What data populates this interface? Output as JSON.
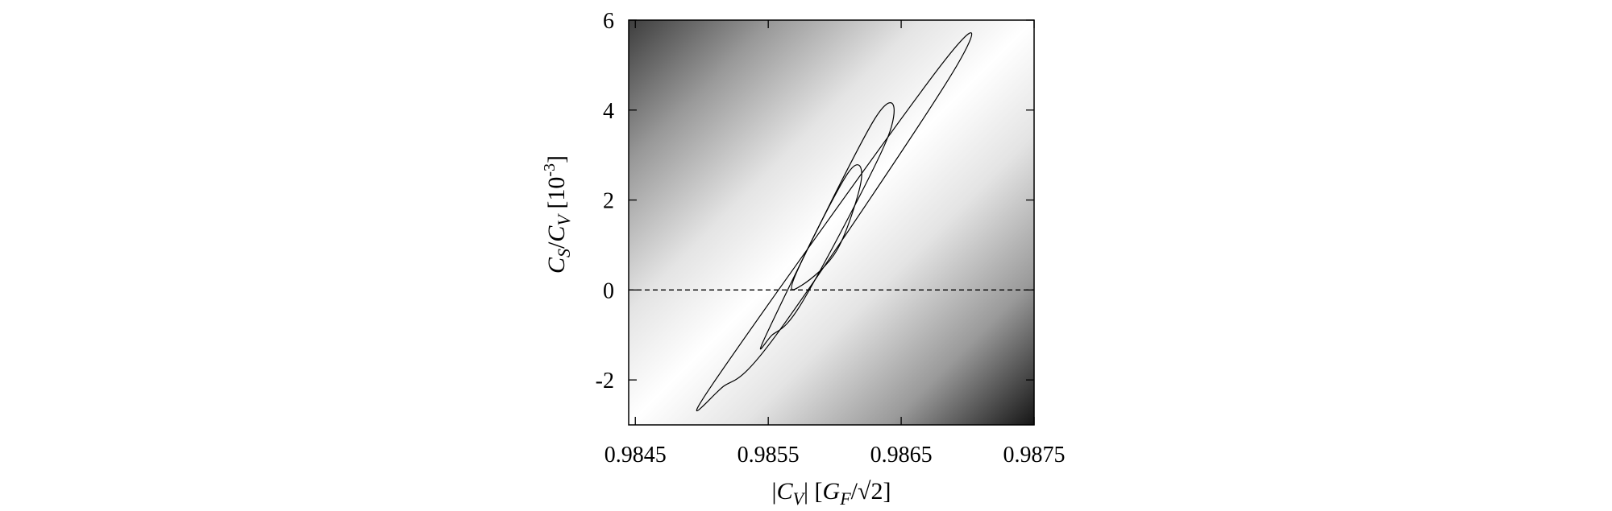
{
  "chart_data": {
    "type": "contour",
    "background": "grayscale density (white near best fit, dark toward top-left and bottom-right corners)",
    "xlabel": {
      "parts": [
        "|",
        "C",
        "V",
        "|   [",
        "G",
        "F",
        "/√2]"
      ]
    },
    "ylabel": {
      "parts": [
        "C",
        "S",
        "/",
        "C",
        "V",
        "  [10",
        "-3",
        "]"
      ]
    },
    "xlim": [
      0.98445,
      0.9875
    ],
    "ylim": [
      -3,
      6
    ],
    "xticks": [
      0.9845,
      0.9855,
      0.9865,
      0.9875
    ],
    "xtick_labels": [
      "0.9845",
      "0.9855",
      "0.9865",
      "0.9875"
    ],
    "yticks": [
      -2,
      0,
      2,
      4,
      6
    ],
    "ytick_labels": [
      "-2",
      "0",
      "2",
      "4",
      "6"
    ],
    "grid": false,
    "reference_line": {
      "y": 0,
      "style": "dashed"
    },
    "contours": [
      {
        "name": "",
        "points": [
          [
            0.9861,
            2.6
          ],
          [
            0.9857,
            0.3
          ],
          [
            0.98575,
            0.1
          ],
          [
            0.98602,
            0.9
          ],
          [
            0.9862,
            2.45
          ],
          [
            0.9861,
            2.6
          ]
        ]
      },
      {
        "name": "",
        "points": [
          [
            0.9863,
            3.8
          ],
          [
            0.9855,
            -0.9
          ],
          [
            0.98553,
            -1.0
          ],
          [
            0.98577,
            -0.2
          ],
          [
            0.9864,
            3.4
          ],
          [
            0.9863,
            3.8
          ]
        ]
      },
      {
        "name": "",
        "points": [
          [
            0.9868,
            5.0
          ],
          [
            0.98508,
            -2.1
          ],
          [
            0.98516,
            -2.15
          ],
          [
            0.98556,
            -1.0
          ],
          [
            0.98688,
            4.8
          ],
          [
            0.9868,
            5.0
          ]
        ]
      }
    ]
  }
}
